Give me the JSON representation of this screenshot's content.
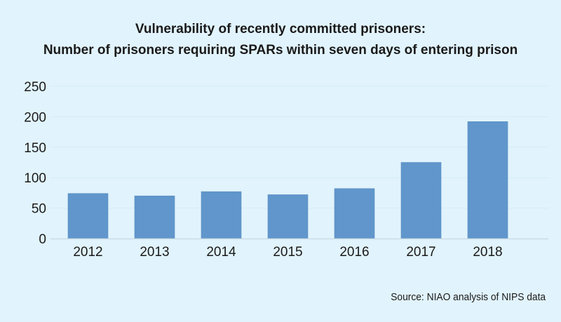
{
  "chart_data": {
    "type": "bar",
    "title": "Vulnerability of recently committed prisoners:",
    "subtitle": "Number of prisoners requiring SPARs within seven days of entering prison",
    "categories": [
      "2012",
      "2013",
      "2014",
      "2015",
      "2016",
      "2017",
      "2018"
    ],
    "values": [
      74,
      70,
      77,
      72,
      82,
      125,
      192
    ],
    "xlabel": "",
    "ylabel": "",
    "ylim": [
      0,
      250
    ],
    "yticks": [
      0,
      50,
      100,
      150,
      200,
      250
    ],
    "grid": true,
    "legend": "none",
    "bar_color": "#6096cb",
    "source": "Source: NIAO analysis of NIPS data"
  }
}
